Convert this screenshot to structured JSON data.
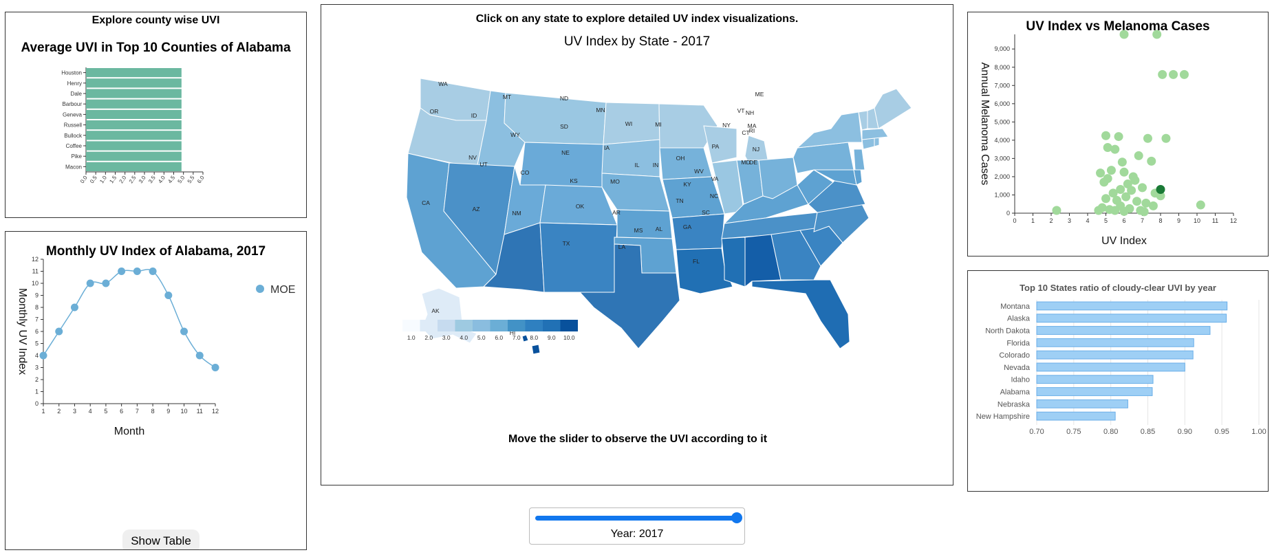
{
  "county_panel": {
    "header": "Explore county wise UVI",
    "title": "Average UVI in Top 10 Counties of Alabama"
  },
  "monthly_panel": {
    "title": "Monthly UV Index of Alabama, 2017",
    "legend_label": "MOE",
    "show_table_label": "Show Table"
  },
  "map_panel": {
    "instruction": "Click on any state to explore detailed UV index visualizations.",
    "title": "UV Index by State - 2017",
    "slider_hint": "Move the slider to observe the UVI according to it",
    "state_codes": [
      "WA",
      "OR",
      "CA",
      "ID",
      "NV",
      "MT",
      "WY",
      "UT",
      "AZ",
      "CO",
      "NM",
      "ND",
      "SD",
      "NE",
      "KS",
      "OK",
      "TX",
      "MN",
      "IA",
      "MO",
      "AR",
      "LA",
      "WI",
      "IL",
      "MI",
      "IN",
      "OH",
      "KY",
      "TN",
      "MS",
      "AL",
      "GA",
      "FL",
      "SC",
      "NC",
      "VA",
      "WV",
      "PA",
      "NY",
      "VT",
      "NH",
      "ME",
      "MA",
      "RI",
      "CT",
      "NJ",
      "DE",
      "MD",
      "AK",
      "HI"
    ],
    "legend_labels": [
      "1.0",
      "2.0",
      "3.0",
      "4.0",
      "5.0",
      "6.0",
      "7.0",
      "8.0",
      "9.0",
      "10.0"
    ],
    "legend_colors": [
      "#f7fbff",
      "#deebf7",
      "#c6dbef",
      "#9ecae1",
      "#8abddf",
      "#6baed6",
      "#4292c6",
      "#2f80c0",
      "#2171b5",
      "#08519c"
    ]
  },
  "slider": {
    "year_label": "Year: 2017",
    "value": 2017
  },
  "colors": {
    "county_bar": "#6bb8a0",
    "monthly_line": "#6baed6",
    "scatter_point": "#a1d99b",
    "scatter_highlight": "#1a7a36",
    "ratio_bar": "#9ecff5",
    "ratio_bar_stroke": "#6aaee8"
  },
  "chart_data": [
    {
      "type": "bar",
      "orientation": "horizontal",
      "title": "Average UVI in Top 10 Counties of Alabama",
      "categories": [
        "Houston",
        "Henry",
        "Dale",
        "Barbour",
        "Geneva",
        "Russell",
        "Bullock",
        "Coffee",
        "Pike",
        "Macon"
      ],
      "values": [
        4.9,
        4.9,
        4.9,
        4.9,
        4.9,
        4.9,
        4.9,
        4.9,
        4.9,
        4.9
      ],
      "xlim": [
        0,
        6.0
      ],
      "x_ticks": [
        "0.0",
        "0.5",
        "1.0",
        "1.5",
        "2.0",
        "2.5",
        "3.0",
        "3.5",
        "4.0",
        "4.5",
        "5.0",
        "5.5",
        "6.0"
      ]
    },
    {
      "type": "line",
      "title": "Monthly UV Index of Alabama, 2017",
      "xlabel": "Month",
      "ylabel": "Monthly UV Index",
      "x": [
        1,
        2,
        3,
        4,
        5,
        6,
        7,
        8,
        9,
        10,
        11,
        12
      ],
      "series": [
        {
          "name": "MOE",
          "values": [
            4,
            6,
            8,
            10,
            10,
            11,
            11,
            11,
            9,
            6,
            4,
            3
          ]
        }
      ],
      "ylim": [
        0,
        12
      ],
      "y_ticks": [
        "0",
        "1",
        "2",
        "3",
        "4",
        "5",
        "6",
        "7",
        "8",
        "9",
        "10",
        "11",
        "12"
      ],
      "x_ticks": [
        "1",
        "2",
        "3",
        "4",
        "5",
        "6",
        "7",
        "8",
        "9",
        "10",
        "11",
        "12"
      ]
    },
    {
      "type": "scatter",
      "title": "UV Index vs Melanoma Cases",
      "xlabel": "UV Index",
      "ylabel": "Annual Melanoma Cases",
      "xlim": [
        0,
        12
      ],
      "ylim": [
        0,
        9800
      ],
      "x_ticks": [
        "0",
        "1",
        "2",
        "3",
        "4",
        "5",
        "6",
        "7",
        "8",
        "9",
        "10",
        "11",
        "12"
      ],
      "y_ticks": [
        "0",
        "1,000",
        "2,000",
        "3,000",
        "4,000",
        "5,000",
        "6,000",
        "7,000",
        "8,000",
        "9,000"
      ],
      "points": [
        [
          6.0,
          9800
        ],
        [
          7.8,
          9800
        ],
        [
          8.1,
          7600
        ],
        [
          8.7,
          7600
        ],
        [
          9.3,
          7600
        ],
        [
          5.0,
          4250
        ],
        [
          5.7,
          4200
        ],
        [
          7.3,
          4100
        ],
        [
          8.3,
          4100
        ],
        [
          5.1,
          3600
        ],
        [
          5.5,
          3500
        ],
        [
          6.8,
          3150
        ],
        [
          7.5,
          2850
        ],
        [
          5.3,
          2350
        ],
        [
          6.0,
          2250
        ],
        [
          4.7,
          2200
        ],
        [
          6.5,
          2000
        ],
        [
          5.1,
          1900
        ],
        [
          6.2,
          1600
        ],
        [
          7.0,
          1400
        ],
        [
          5.8,
          1300
        ],
        [
          6.4,
          1250
        ],
        [
          7.7,
          1100
        ],
        [
          8.0,
          950
        ],
        [
          5.4,
          1100
        ],
        [
          6.1,
          900
        ],
        [
          5.0,
          800
        ],
        [
          5.6,
          700
        ],
        [
          6.7,
          650
        ],
        [
          7.2,
          550
        ],
        [
          5.8,
          400
        ],
        [
          6.3,
          250
        ],
        [
          4.8,
          300
        ],
        [
          5.2,
          200
        ],
        [
          6.9,
          150
        ],
        [
          7.6,
          400
        ],
        [
          5.5,
          150
        ],
        [
          6.0,
          100
        ],
        [
          4.6,
          150
        ],
        [
          7.1,
          80
        ],
        [
          10.2,
          450
        ],
        [
          2.3,
          150
        ],
        [
          5.9,
          2800
        ],
        [
          4.9,
          1700
        ],
        [
          6.6,
          1800
        ]
      ],
      "highlight": [
        8.0,
        1300
      ]
    },
    {
      "type": "bar",
      "orientation": "horizontal",
      "title": "Top 10 States ratio of cloudy-clear UVI by year",
      "categories": [
        "Montana",
        "Alaska",
        "North Dakota",
        "Florida",
        "Colorado",
        "Nevada",
        "Idaho",
        "Alabama",
        "Nebraska",
        "New Hampshire"
      ],
      "values": [
        0.957,
        0.956,
        0.934,
        0.912,
        0.911,
        0.9,
        0.857,
        0.856,
        0.823,
        0.806
      ],
      "xlim": [
        0.7,
        1.0
      ],
      "x_ticks": [
        "0.70",
        "0.75",
        "0.80",
        "0.85",
        "0.90",
        "0.95",
        "1.00"
      ]
    }
  ]
}
